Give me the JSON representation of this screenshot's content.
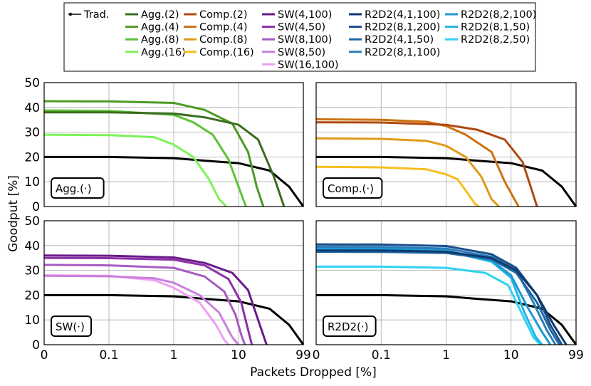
{
  "chart_data": {
    "type": "line",
    "ylabel": "Goodput [%]",
    "xlabel": "Packets Dropped [%]",
    "x_ticks": [
      "0",
      "0.1",
      "1",
      "10",
      "99"
    ],
    "y_ticks": [
      "0",
      "10",
      "20",
      "30",
      "40",
      "50"
    ],
    "ylim": [
      0,
      50
    ],
    "xlim": [
      0,
      99
    ],
    "grid": true,
    "legend_position": "top",
    "baseline": {
      "name": "Trad.",
      "color": "#000000",
      "values": [
        [
          0,
          20.0
        ],
        [
          0.1,
          20.0
        ],
        [
          1,
          19.5
        ],
        [
          3,
          18.5
        ],
        [
          10,
          17.5
        ],
        [
          30,
          14.5
        ],
        [
          60,
          8.0
        ],
        [
          99,
          0.0
        ]
      ]
    },
    "legend_columns": [
      [
        "Trad."
      ],
      [
        "Agg.(2)",
        "Agg.(4)",
        "Agg.(8)",
        "Agg.(16)"
      ],
      [
        "Comp.(2)",
        "Comp.(4)",
        "Comp.(8)",
        "Comp.(16)"
      ],
      [
        "SW(4,100)",
        "SW(4,50)",
        "SW(8,100)",
        "SW(8,50)",
        "SW(16,100)"
      ],
      [
        "R2D2(4,1,100)",
        "R2D2(8,1,200)",
        "R2D2(4,1,50)",
        "R2D2(8,1,100)"
      ],
      [
        "R2D2(8,2,100)",
        "R2D2(8,1,50)",
        "R2D2(8,2,50)"
      ]
    ],
    "panels": [
      {
        "label": "Agg.(·)",
        "series": [
          {
            "name": "Agg.(2)",
            "color": "#3a6e1e",
            "values": [
              [
                0,
                38.0
              ],
              [
                0.1,
                38.0
              ],
              [
                1,
                37.5
              ],
              [
                3,
                36.0
              ],
              [
                10,
                33.0
              ],
              [
                20,
                27.0
              ],
              [
                35,
                12.0
              ],
              [
                50,
                0.0
              ]
            ]
          },
          {
            "name": "Agg.(4)",
            "color": "#4c9a23",
            "values": [
              [
                0,
                42.5
              ],
              [
                0.1,
                42.4
              ],
              [
                1,
                41.8
              ],
              [
                3,
                39.0
              ],
              [
                8,
                33.5
              ],
              [
                14,
                22.0
              ],
              [
                19,
                8.0
              ],
              [
                24,
                0.0
              ]
            ]
          },
          {
            "name": "Agg.(8)",
            "color": "#60c235",
            "values": [
              [
                0,
                38.8
              ],
              [
                0.1,
                38.6
              ],
              [
                1,
                37.0
              ],
              [
                2,
                34.0
              ],
              [
                4,
                29.0
              ],
              [
                7,
                19.0
              ],
              [
                10,
                8.0
              ],
              [
                13,
                0.0
              ]
            ]
          },
          {
            "name": "Agg.(16)",
            "color": "#7df257",
            "values": [
              [
                0,
                29.0
              ],
              [
                0.1,
                28.8
              ],
              [
                0.5,
                28.0
              ],
              [
                1,
                25.0
              ],
              [
                2,
                20.0
              ],
              [
                3.5,
                11.0
              ],
              [
                5,
                3.0
              ],
              [
                6.5,
                0.0
              ]
            ]
          }
        ]
      },
      {
        "label": "Comp.(·)",
        "series": [
          {
            "name": "Comp.(2)",
            "color": "#b04a10",
            "values": [
              [
                0,
                34.0
              ],
              [
                0.1,
                33.9
              ],
              [
                1,
                33.0
              ],
              [
                3,
                31.0
              ],
              [
                8,
                27.0
              ],
              [
                15,
                18.0
              ],
              [
                20,
                8.0
              ],
              [
                25,
                0.0
              ]
            ]
          },
          {
            "name": "Comp.(4)",
            "color": "#cc7212",
            "values": [
              [
                0,
                35.2
              ],
              [
                0.1,
                35.0
              ],
              [
                0.5,
                34.2
              ],
              [
                1,
                32.5
              ],
              [
                2,
                29.0
              ],
              [
                5,
                22.0
              ],
              [
                8,
                10.0
              ],
              [
                13,
                0.0
              ]
            ]
          },
          {
            "name": "Comp.(8)",
            "color": "#e09a1a",
            "values": [
              [
                0,
                27.5
              ],
              [
                0.1,
                27.3
              ],
              [
                0.5,
                26.5
              ],
              [
                1,
                24.5
              ],
              [
                2,
                20.0
              ],
              [
                3.5,
                12.0
              ],
              [
                5,
                3.0
              ],
              [
                6.5,
                0.0
              ]
            ]
          },
          {
            "name": "Comp.(16)",
            "color": "#f6be1e",
            "values": [
              [
                0,
                16.0
              ],
              [
                0.1,
                15.8
              ],
              [
                0.5,
                15.0
              ],
              [
                1,
                13.0
              ],
              [
                1.5,
                11.0
              ],
              [
                2.2,
                5.0
              ],
              [
                2.8,
                1.0
              ],
              [
                3.2,
                0.0
              ]
            ]
          }
        ]
      },
      {
        "label": "SW(·)",
        "series": [
          {
            "name": "SW(4,100)",
            "color": "#6a1b8a",
            "values": [
              [
                0,
                36.0
              ],
              [
                0.1,
                35.9
              ],
              [
                1,
                35.2
              ],
              [
                3,
                33.0
              ],
              [
                8,
                29.0
              ],
              [
                14,
                22.0
              ],
              [
                20,
                10.0
              ],
              [
                27,
                0.0
              ]
            ]
          },
          {
            "name": "SW(4,50)",
            "color": "#8c2fa8",
            "values": [
              [
                0,
                35.0
              ],
              [
                0.1,
                34.9
              ],
              [
                1,
                34.3
              ],
              [
                3,
                32.0
              ],
              [
                7,
                26.5
              ],
              [
                11,
                17.0
              ],
              [
                14,
                6.0
              ],
              [
                16,
                0.0
              ]
            ]
          },
          {
            "name": "SW(8,100)",
            "color": "#a85bc2",
            "values": [
              [
                0,
                32.2
              ],
              [
                0.1,
                32.0
              ],
              [
                1,
                31.0
              ],
              [
                3,
                27.5
              ],
              [
                6,
                21.5
              ],
              [
                9,
                12.0
              ],
              [
                11,
                4.0
              ],
              [
                12.5,
                0.0
              ]
            ]
          },
          {
            "name": "SW(8,50)",
            "color": "#c880dc",
            "values": [
              [
                0,
                27.8
              ],
              [
                0.1,
                27.6
              ],
              [
                0.5,
                26.8
              ],
              [
                1,
                25.0
              ],
              [
                2.5,
                20.0
              ],
              [
                5,
                13.0
              ],
              [
                8,
                3.0
              ],
              [
                10,
                0.0
              ]
            ]
          },
          {
            "name": "SW(16,100)",
            "color": "#ee9ff2",
            "values": [
              [
                0,
                28.0
              ],
              [
                0.1,
                27.8
              ],
              [
                0.5,
                26.0
              ],
              [
                1,
                23.0
              ],
              [
                2.5,
                17.0
              ],
              [
                4.5,
                8.0
              ],
              [
                6,
                2.0
              ],
              [
                7,
                0.0
              ]
            ]
          }
        ]
      },
      {
        "label": "R2D2(·)",
        "series": [
          {
            "name": "R2D2(4,1,100)",
            "color": "#0e3a6e",
            "values": [
              [
                0,
                38.0
              ],
              [
                0.1,
                38.0
              ],
              [
                1,
                37.5
              ],
              [
                5,
                35.0
              ],
              [
                12,
                30.0
              ],
              [
                25,
                20.0
              ],
              [
                45,
                8.0
              ],
              [
                70,
                0.0
              ]
            ]
          },
          {
            "name": "R2D2(8,1,200)",
            "color": "#1a4e8c",
            "values": [
              [
                0,
                40.5
              ],
              [
                0.1,
                40.4
              ],
              [
                1,
                39.8
              ],
              [
                5,
                36.5
              ],
              [
                12,
                31.0
              ],
              [
                25,
                20.0
              ],
              [
                40,
                8.0
              ],
              [
                60,
                0.0
              ]
            ]
          },
          {
            "name": "R2D2(4,1,50)",
            "color": "#2066a2",
            "values": [
              [
                0,
                37.5
              ],
              [
                0.1,
                37.4
              ],
              [
                1,
                37.0
              ],
              [
                5,
                34.5
              ],
              [
                12,
                29.0
              ],
              [
                25,
                17.0
              ],
              [
                40,
                6.0
              ],
              [
                55,
                0.0
              ]
            ]
          },
          {
            "name": "R2D2(8,1,100)",
            "color": "#2a7eb8",
            "values": [
              [
                0,
                39.5
              ],
              [
                0.1,
                39.4
              ],
              [
                1,
                38.8
              ],
              [
                5,
                35.5
              ],
              [
                12,
                30.0
              ],
              [
                22,
                17.0
              ],
              [
                35,
                6.0
              ],
              [
                48,
                0.0
              ]
            ]
          },
          {
            "name": "R2D2(8,2,100)",
            "color": "#1b9ad6",
            "values": [
              [
                0,
                39.0
              ],
              [
                0.1,
                38.9
              ],
              [
                1,
                38.0
              ],
              [
                5,
                34.0
              ],
              [
                10,
                28.0
              ],
              [
                18,
                15.0
              ],
              [
                30,
                5.0
              ],
              [
                40,
                0.0
              ]
            ]
          },
          {
            "name": "R2D2(8,1,50)",
            "color": "#20b4e4",
            "values": [
              [
                0,
                38.5
              ],
              [
                0.1,
                38.4
              ],
              [
                1,
                37.8
              ],
              [
                5,
                33.5
              ],
              [
                10,
                27.0
              ],
              [
                16,
                13.0
              ],
              [
                24,
                3.0
              ],
              [
                30,
                0.0
              ]
            ]
          },
          {
            "name": "R2D2(8,2,50)",
            "color": "#30d2f2",
            "values": [
              [
                0,
                31.5
              ],
              [
                0.1,
                31.5
              ],
              [
                1,
                31.0
              ],
              [
                4,
                29.0
              ],
              [
                9,
                24.0
              ],
              [
                15,
                12.0
              ],
              [
                22,
                3.0
              ],
              [
                28,
                0.0
              ]
            ]
          }
        ]
      }
    ]
  }
}
